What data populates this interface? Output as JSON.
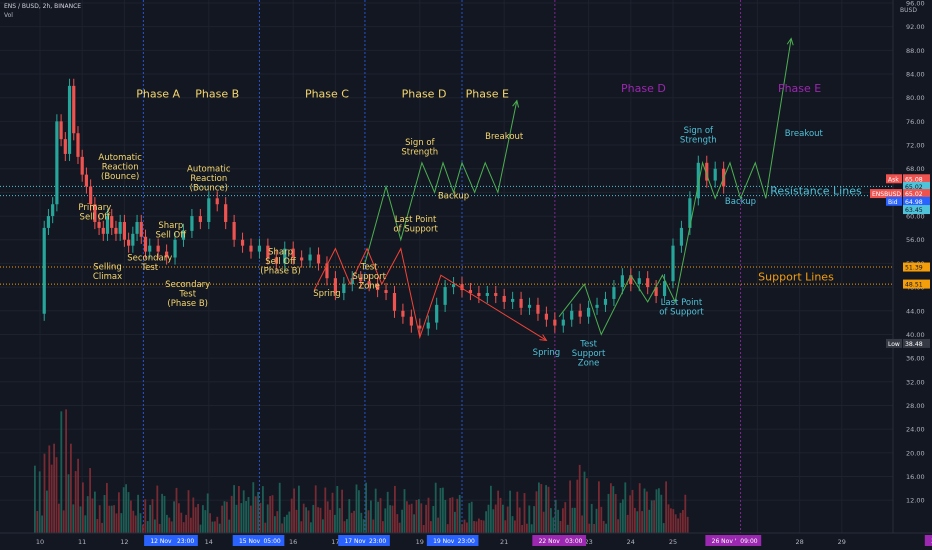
{
  "header": {
    "symbol": "ENS / BUSD, 2h, BINANCE",
    "volume_label": "Vol"
  },
  "chart_data": {
    "type": "candlestick",
    "title": "",
    "ylim": [
      10,
      96
    ],
    "y_ticks": [
      "96.00",
      "92.00",
      "88.00",
      "84.00",
      "80.00",
      "76.00",
      "72.00",
      "68.00",
      "64.00",
      "60.00",
      "56.00",
      "52.00",
      "48.00",
      "44.00",
      "40.00",
      "36.00",
      "32.00",
      "28.00",
      "24.00",
      "20.00",
      "16.00",
      "12.00"
    ],
    "x_ticks": [
      {
        "label": "10",
        "day": 10
      },
      {
        "label": "11",
        "day": 11
      },
      {
        "label": "12",
        "day": 12
      },
      {
        "label": "14",
        "day": 14
      },
      {
        "label": "16",
        "day": 16
      },
      {
        "label": "17",
        "day": 17
      },
      {
        "label": "19",
        "day": 19
      },
      {
        "label": "21",
        "day": 21
      },
      {
        "label": "23",
        "day": 23
      },
      {
        "label": "24",
        "day": 24
      },
      {
        "label": "25",
        "day": 25
      },
      {
        "label": "27",
        "day": 27
      },
      {
        "label": "28",
        "day": 28
      },
      {
        "label": "29",
        "day": 29
      },
      {
        "label": "1",
        "day": 31.9
      }
    ],
    "date_pills": [
      {
        "label": "12 Nov '21",
        "day": 13.0,
        "color": "#2962ff"
      },
      {
        "label": "23:00",
        "day": 13.45,
        "color": "#2962ff"
      },
      {
        "label": "15 Nov '21",
        "day": 15.1,
        "color": "#2962ff"
      },
      {
        "label": "05:00",
        "day": 15.5,
        "color": "#2962ff"
      },
      {
        "label": "17 Nov '21",
        "day": 17.6,
        "color": "#2962ff"
      },
      {
        "label": "23:00",
        "day": 18.0,
        "color": "#2962ff"
      },
      {
        "label": "19 Nov '21",
        "day": 19.7,
        "color": "#2962ff"
      },
      {
        "label": "23:00",
        "day": 20.1,
        "color": "#2962ff"
      },
      {
        "label": "22 Nov '21",
        "day": 22.2,
        "color": "#9c27b0"
      },
      {
        "label": "03:00",
        "day": 22.65,
        "color": "#9c27b0"
      },
      {
        "label": "26 Nov '21",
        "day": 26.3,
        "color": "#9c27b0"
      },
      {
        "label": "09:00",
        "day": 26.8,
        "color": "#9c27b0"
      },
      {
        "label": "30 Nov '21",
        "day": 31.5,
        "color": "#9c27b0"
      }
    ],
    "series": [
      {
        "name": "ENSBUSD",
        "close_points": [
          [
            10.0,
            43.5
          ],
          [
            10.1,
            58.0
          ],
          [
            10.2,
            60.0
          ],
          [
            10.3,
            62.0
          ],
          [
            10.4,
            76.0
          ],
          [
            10.5,
            73.0
          ],
          [
            10.6,
            70.5
          ],
          [
            10.7,
            82.0
          ],
          [
            10.8,
            74.0
          ],
          [
            10.9,
            70.0
          ],
          [
            11.0,
            67.0
          ],
          [
            11.1,
            65.0
          ],
          [
            11.2,
            62.0
          ],
          [
            11.3,
            59.0
          ],
          [
            11.4,
            58.0
          ],
          [
            11.5,
            57.0
          ],
          [
            11.6,
            60.0
          ],
          [
            11.7,
            58.0
          ],
          [
            11.8,
            57.0
          ],
          [
            11.9,
            59.0
          ],
          [
            12.0,
            56.0
          ],
          [
            12.1,
            55.0
          ],
          [
            12.2,
            57.0
          ],
          [
            12.3,
            59.0
          ],
          [
            12.4,
            56.5
          ],
          [
            12.5,
            54.0
          ],
          [
            12.6,
            55.0
          ],
          [
            12.8,
            54.0
          ],
          [
            13.0,
            53.0
          ],
          [
            13.2,
            56.0
          ],
          [
            13.4,
            57.5
          ],
          [
            13.6,
            60.0
          ],
          [
            13.8,
            59.0
          ],
          [
            14.0,
            63.0
          ],
          [
            14.2,
            62.0
          ],
          [
            14.4,
            59.0
          ],
          [
            14.6,
            56.0
          ],
          [
            14.8,
            55.0
          ],
          [
            15.0,
            54.0
          ],
          [
            15.2,
            55.0
          ],
          [
            15.4,
            53.0
          ],
          [
            15.6,
            52.0
          ],
          [
            15.8,
            54.5
          ],
          [
            16.0,
            53.0
          ],
          [
            16.2,
            52.5
          ],
          [
            16.4,
            53.5
          ],
          [
            16.6,
            52.0
          ],
          [
            16.8,
            49.5
          ],
          [
            17.0,
            47.0
          ],
          [
            17.2,
            48.5
          ],
          [
            17.4,
            49.5
          ],
          [
            17.6,
            49.0
          ],
          [
            17.8,
            48.5
          ],
          [
            18.0,
            47.5
          ],
          [
            18.2,
            47.0
          ],
          [
            18.4,
            44.0
          ],
          [
            18.6,
            43.0
          ],
          [
            18.8,
            41.5
          ],
          [
            19.0,
            41.0
          ],
          [
            19.2,
            42.0
          ],
          [
            19.4,
            45.0
          ],
          [
            19.6,
            48.0
          ],
          [
            19.8,
            48.5
          ],
          [
            20.0,
            47.5
          ],
          [
            20.2,
            47.0
          ],
          [
            20.4,
            46.5
          ],
          [
            20.6,
            47.0
          ],
          [
            20.8,
            46.5
          ],
          [
            21.0,
            45.5
          ],
          [
            21.2,
            46.0
          ],
          [
            21.4,
            44.5
          ],
          [
            21.6,
            45.0
          ],
          [
            21.8,
            43.5
          ],
          [
            22.0,
            42.5
          ],
          [
            22.2,
            41.5
          ],
          [
            22.4,
            42.5
          ],
          [
            22.6,
            44.0
          ],
          [
            22.8,
            43.0
          ],
          [
            23.0,
            44.5
          ],
          [
            23.2,
            45.0
          ],
          [
            23.4,
            46.0
          ],
          [
            23.6,
            48.0
          ],
          [
            23.8,
            50.0
          ],
          [
            24.0,
            48.5
          ],
          [
            24.2,
            49.5
          ],
          [
            24.4,
            48.0
          ],
          [
            24.6,
            46.5
          ],
          [
            24.8,
            49.0
          ],
          [
            25.0,
            55.0
          ],
          [
            25.2,
            58.0
          ],
          [
            25.4,
            63.0
          ],
          [
            25.6,
            69.0
          ],
          [
            25.8,
            66.0
          ],
          [
            26.0,
            68.0
          ],
          [
            26.2,
            65.0
          ]
        ]
      }
    ],
    "volume_note": "bottom histogram of volume bars",
    "ask": {
      "label": "Ask",
      "value": "65.08"
    },
    "mid": {
      "value": "65.02"
    },
    "last": {
      "label": "ENSBUSD",
      "value": "65.02"
    },
    "bid": {
      "label": "Bid",
      "value": "64.98"
    },
    "resistance_price": {
      "value": "63.45",
      "price": 63.45
    },
    "support_upper": {
      "value": "51.39",
      "price": 51.39
    },
    "support_lower": {
      "value": "48.51",
      "price": 48.51
    },
    "low": {
      "label": "Low",
      "value": "38.48",
      "price": 38.48
    },
    "resistance_label": "Resistance Lines",
    "support_label": "Support Lines",
    "phases_left": [
      {
        "label": "Phase A",
        "day": 12.8,
        "price": 80.0
      },
      {
        "label": "Phase B",
        "day": 14.2,
        "price": 80.0
      },
      {
        "label": "Phase C",
        "day": 16.8,
        "price": 80.0
      },
      {
        "label": "Phase D",
        "day": 19.1,
        "price": 80.0
      },
      {
        "label": "Phase E",
        "day": 20.6,
        "price": 80.0
      }
    ],
    "phases_right": [
      {
        "label": "Phase D",
        "day": 24.3,
        "price": 81.0
      },
      {
        "label": "Phase E",
        "day": 28.0,
        "price": 81.0
      }
    ],
    "annotations": [
      {
        "lines": [
          "Automatic",
          "Reaction",
          "(Bounce)"
        ],
        "day": 11.9,
        "price": 69.5,
        "color": "#f5d76e"
      },
      {
        "lines": [
          "Primary",
          "Sell Off"
        ],
        "day": 11.3,
        "price": 61.0,
        "color": "#f5d76e"
      },
      {
        "lines": [
          "Sharp",
          "Sell Off"
        ],
        "day": 13.1,
        "price": 58.0,
        "color": "#f5d76e"
      },
      {
        "lines": [
          "Selling",
          "Climax"
        ],
        "day": 11.6,
        "price": 51.0,
        "color": "#f5d76e"
      },
      {
        "lines": [
          "Secondary",
          "Test"
        ],
        "day": 12.6,
        "price": 52.5,
        "color": "#f5d76e"
      },
      {
        "lines": [
          "Automatic",
          "Reaction",
          "(Bounce)"
        ],
        "day": 14.0,
        "price": 67.5,
        "color": "#f5d76e"
      },
      {
        "lines": [
          "Secondary",
          "Test",
          "(Phase B)"
        ],
        "day": 13.5,
        "price": 48.0,
        "color": "#f5d76e"
      },
      {
        "lines": [
          "Sharp",
          "Sell Off",
          "(Phase B)"
        ],
        "day": 15.7,
        "price": 53.5,
        "color": "#f5d76e"
      },
      {
        "lines": [
          "Spring"
        ],
        "day": 16.8,
        "price": 46.5,
        "color": "#f5d76e"
      },
      {
        "lines": [
          "Test",
          "Support",
          "Zone"
        ],
        "day": 17.8,
        "price": 51.0,
        "color": "#f5d76e"
      },
      {
        "lines": [
          "Sign of",
          "Strength"
        ],
        "day": 19.0,
        "price": 72.0,
        "color": "#f5d76e"
      },
      {
        "lines": [
          "Backup"
        ],
        "day": 19.8,
        "price": 63.0,
        "color": "#f5d76e"
      },
      {
        "lines": [
          "Breakout"
        ],
        "day": 21.0,
        "price": 73.0,
        "color": "#f5d76e"
      },
      {
        "lines": [
          "Last Point",
          "of Support"
        ],
        "day": 18.9,
        "price": 59.0,
        "color": "#f5d76e"
      },
      {
        "lines": [
          "Spring"
        ],
        "day": 22.0,
        "price": 36.5,
        "color": "#4fc3d9"
      },
      {
        "lines": [
          "Test",
          "Support",
          "Zone"
        ],
        "day": 23.0,
        "price": 38.0,
        "color": "#4fc3d9"
      },
      {
        "lines": [
          "Last Point",
          "of Support"
        ],
        "day": 25.2,
        "price": 45.0,
        "color": "#4fc3d9"
      },
      {
        "lines": [
          "Sign of",
          "Strength"
        ],
        "day": 25.6,
        "price": 74.0,
        "color": "#4fc3d9"
      },
      {
        "lines": [
          "Backup"
        ],
        "day": 26.6,
        "price": 62.0,
        "color": "#4fc3d9"
      },
      {
        "lines": [
          "Breakout"
        ],
        "day": 28.1,
        "price": 73.5,
        "color": "#4fc3d9"
      }
    ],
    "green_path": [
      [
        17.7,
        52.0
      ],
      [
        18.2,
        65.0
      ],
      [
        18.55,
        56.0
      ],
      [
        19.05,
        69.0
      ],
      [
        19.35,
        64.0
      ],
      [
        19.55,
        69.0
      ],
      [
        19.8,
        64.0
      ],
      [
        20.0,
        69.0
      ],
      [
        20.3,
        64.0
      ],
      [
        20.55,
        69.0
      ],
      [
        20.85,
        64.0
      ],
      [
        21.3,
        79.5
      ]
    ],
    "red_path": [
      [
        16.5,
        47.5
      ],
      [
        17.0,
        54.5
      ],
      [
        17.35,
        48.5
      ],
      [
        17.75,
        54.5
      ],
      [
        18.1,
        48.5
      ],
      [
        18.55,
        54.5
      ],
      [
        19.0,
        39.5
      ],
      [
        19.5,
        50.0
      ],
      [
        22.0,
        39.0
      ]
    ],
    "green_path_right": [
      [
        22.3,
        43.0
      ],
      [
        22.9,
        48.5
      ],
      [
        23.3,
        40.0
      ],
      [
        24.0,
        50.0
      ],
      [
        24.4,
        45.5
      ],
      [
        24.75,
        50.0
      ],
      [
        25.05,
        45.5
      ],
      [
        25.7,
        69.0
      ],
      [
        26.0,
        63.0
      ],
      [
        26.35,
        69.0
      ],
      [
        26.6,
        63.0
      ],
      [
        26.95,
        69.0
      ],
      [
        27.2,
        63.0
      ],
      [
        27.8,
        90.0
      ]
    ],
    "vertical_lines": [
      {
        "day": 12.45,
        "color": "#2962ff"
      },
      {
        "day": 15.2,
        "color": "#2962ff"
      },
      {
        "day": 17.7,
        "color": "#2962ff"
      },
      {
        "day": 20.0,
        "color": "#2962ff"
      },
      {
        "day": 22.2,
        "color": "#9c27b0"
      },
      {
        "day": 26.6,
        "color": "#9c27b0"
      },
      {
        "day": 31.5,
        "color": "#9c27b0"
      }
    ]
  }
}
